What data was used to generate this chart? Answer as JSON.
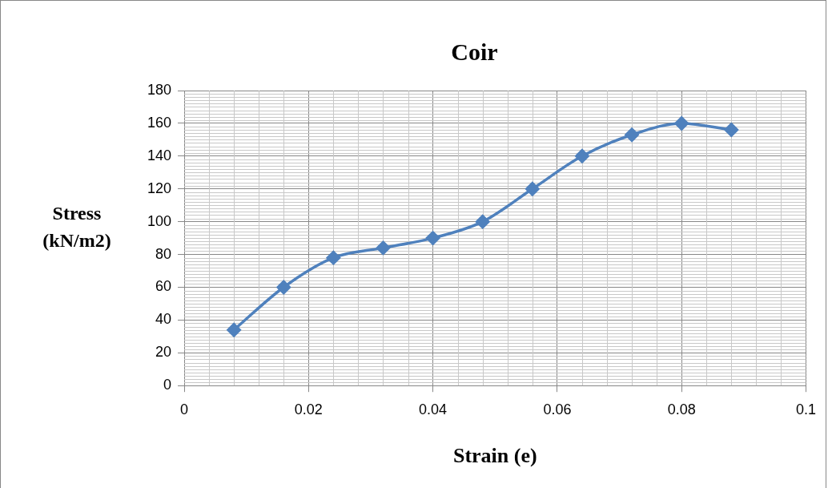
{
  "chart_data": {
    "type": "line",
    "title": "Coir",
    "xlabel": "Strain (e)",
    "ylabel": "Stress (kN/m2)",
    "x": [
      0.008,
      0.016,
      0.024,
      0.032,
      0.04,
      0.048,
      0.056,
      0.064,
      0.072,
      0.08,
      0.088
    ],
    "series": [
      {
        "color": "#4f81bd",
        "values": [
          34,
          60,
          78,
          84,
          90,
          100,
          120,
          140,
          153,
          160,
          156
        ]
      }
    ],
    "xlim": [
      0,
      0.1
    ],
    "xticks": [
      0,
      0.02,
      0.04,
      0.06,
      0.08,
      0.1
    ],
    "ylim": [
      0,
      180
    ],
    "yticks": [
      0,
      20,
      40,
      60,
      80,
      100,
      120,
      140,
      160,
      180
    ],
    "grid": true,
    "marker": "diamond",
    "line_style": "solid",
    "legend": false
  }
}
